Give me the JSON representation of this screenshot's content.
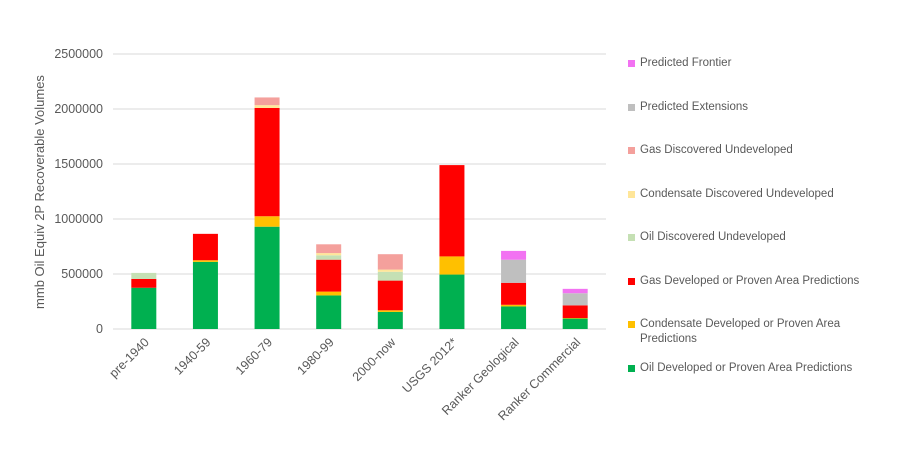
{
  "chart_data": {
    "type": "bar",
    "stacked": true,
    "title": "",
    "xlabel": "",
    "ylabel": "mmb Oil Equiv 2P Recoverable Volumes",
    "ylim": [
      0,
      2500000
    ],
    "yticks": [
      "0",
      "500000",
      "1000000",
      "1500000",
      "2000000",
      "2500000"
    ],
    "grid": true,
    "legend_position": "right",
    "categories": [
      "pre-1940",
      "1940-59",
      "1960-79",
      "1980-99",
      "2000-now",
      "USGS 2012*",
      "Ranker Geological",
      "Ranker Commercial"
    ],
    "series": [
      {
        "name": "Oil Developed or Proven Area Predictions",
        "color": "#00b050",
        "values": [
          375000,
          610000,
          930000,
          305000,
          155000,
          495000,
          205000,
          95000
        ]
      },
      {
        "name": "Condensate Developed or Proven Area Predictions",
        "color": "#ffc000",
        "values": [
          0,
          15000,
          95000,
          35000,
          15000,
          165000,
          15000,
          5000
        ]
      },
      {
        "name": "Gas Developed or Proven Area Predictions",
        "color": "#ff0000",
        "values": [
          80000,
          240000,
          985000,
          290000,
          270000,
          830000,
          200000,
          115000
        ]
      },
      {
        "name": "Oil Discovered Undeveloped",
        "color": "#c5e0b4",
        "values": [
          55000,
          0,
          0,
          40000,
          80000,
          0,
          0,
          0
        ]
      },
      {
        "name": "Condensate Discovered Undeveloped",
        "color": "#ffe699",
        "values": [
          0,
          0,
          25000,
          20000,
          20000,
          0,
          0,
          0
        ]
      },
      {
        "name": "Gas Discovered Undeveloped",
        "color": "#f4a09c",
        "values": [
          0,
          0,
          70000,
          80000,
          140000,
          0,
          0,
          0
        ]
      },
      {
        "name": "Predicted Extensions",
        "color": "#bfbfbf",
        "values": [
          0,
          0,
          0,
          0,
          0,
          0,
          210000,
          110000
        ]
      },
      {
        "name": "Predicted Frontier",
        "color": "#f272f2",
        "values": [
          0,
          0,
          0,
          0,
          0,
          0,
          80000,
          40000
        ]
      }
    ]
  }
}
